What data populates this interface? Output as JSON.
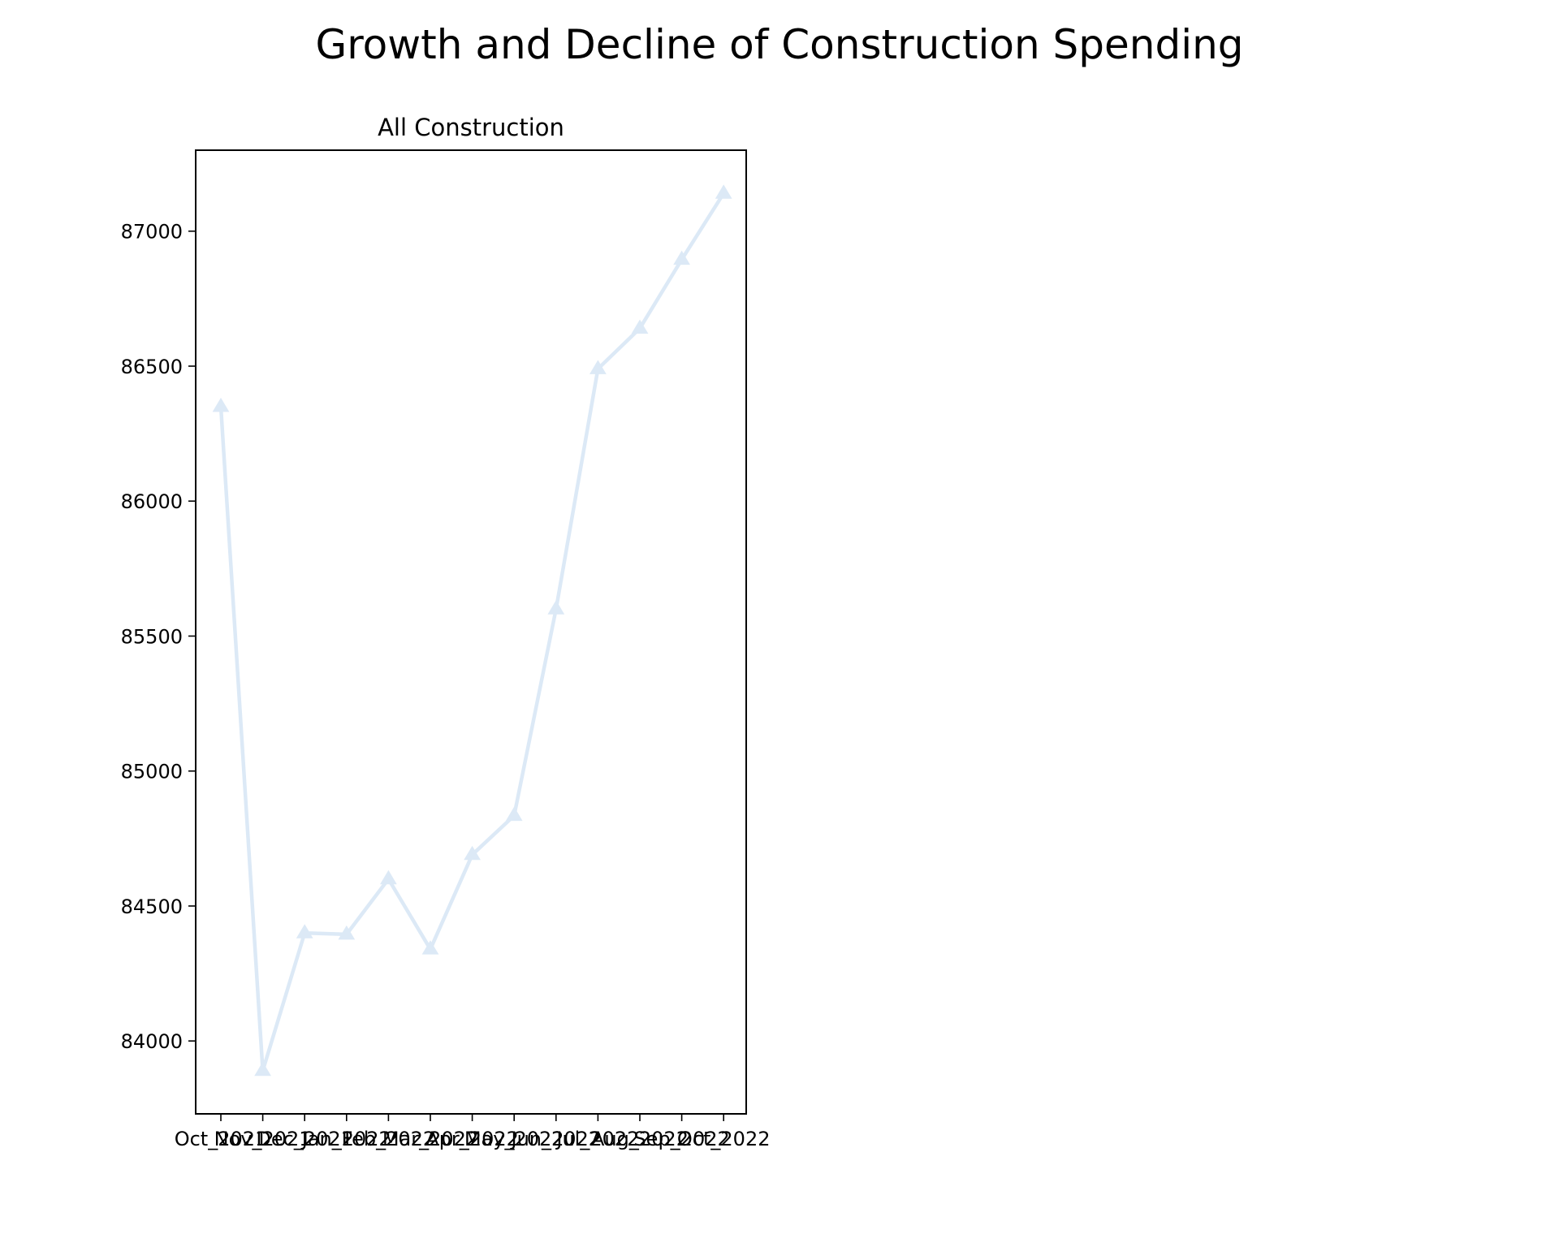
{
  "chart_data": {
    "type": "line",
    "title": "Growth and Decline of Construction Spending",
    "subplot_title": "All Construction",
    "xlabel": "",
    "ylabel": "",
    "categories": [
      "Oct_2021",
      "Nov_2021",
      "Dec_2021",
      "Jan_2022",
      "Feb_2022",
      "Mar_2022",
      "Apr_2022",
      "May_2022",
      "Jun_2022",
      "Jul_2022",
      "Aug_2022",
      "Sep_2022",
      "Oct_2022"
    ],
    "series": [
      {
        "values": [
          86350,
          83890,
          84400,
          84395,
          84600,
          84340,
          84690,
          84835,
          85600,
          86490,
          86640,
          86895,
          87140
        ],
        "color": "#dce9f6",
        "marker": "triangle-up"
      }
    ],
    "yticks": [
      84000,
      84500,
      85000,
      85500,
      86000,
      86500,
      87000
    ],
    "ylim": [
      83730,
      87300
    ],
    "grid": false,
    "legend": "none"
  }
}
